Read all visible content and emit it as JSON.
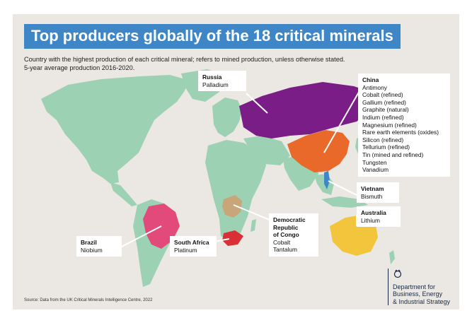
{
  "title": "Top producers globally of the 18 critical minerals",
  "subtitle_line1": "Country with the highest production of each critical mineral; refers to mined production, unless otherwise stated.",
  "subtitle_line2": "5-year average production 2016-2020.",
  "colors": {
    "background": "#ebe7e2",
    "land": "#9cd1b3",
    "russia": "#7a1d86",
    "china": "#e8692a",
    "brazil": "#e24a7c",
    "drc": "#c9a57a",
    "south_africa": "#d92f37",
    "australia": "#f3c53c",
    "title_bg": "#3f86c6"
  },
  "callouts": {
    "russia": {
      "country": "Russia",
      "minerals": [
        "Palladium"
      ]
    },
    "china": {
      "country": "China",
      "minerals": [
        "Antimony",
        "Cobalt (refined)",
        "Gallium (refined)",
        "Graphite (natural)",
        "Indium (refined)",
        "Magnesium (refined)",
        "Rare earth elements (oxides)",
        "Silicon (refined)",
        "Tellurium (refined)",
        "Tin (mined and refined)",
        "Tungsten",
        "Vanadium"
      ]
    },
    "vietnam": {
      "country": "Vietnam",
      "minerals": [
        "Bismuth"
      ]
    },
    "australia": {
      "country": "Australia",
      "minerals": [
        "Lithium"
      ]
    },
    "drc_line1": "Democratic",
    "drc_line2": "Republic",
    "drc_line3": "of Congo",
    "drc_minerals": [
      "Cobalt",
      "Tantalum"
    ],
    "brazil": {
      "country": "Brazil",
      "minerals": [
        "Niobium"
      ]
    },
    "south_africa": {
      "country": "South Africa",
      "minerals": [
        "Platinum"
      ]
    }
  },
  "source": "Source: Data from the UK Critical Minerals Intelligence Centre, 2022",
  "logo": {
    "line1": "Department for",
    "line2": "Business, Energy",
    "line3": "& Industrial Strategy"
  }
}
